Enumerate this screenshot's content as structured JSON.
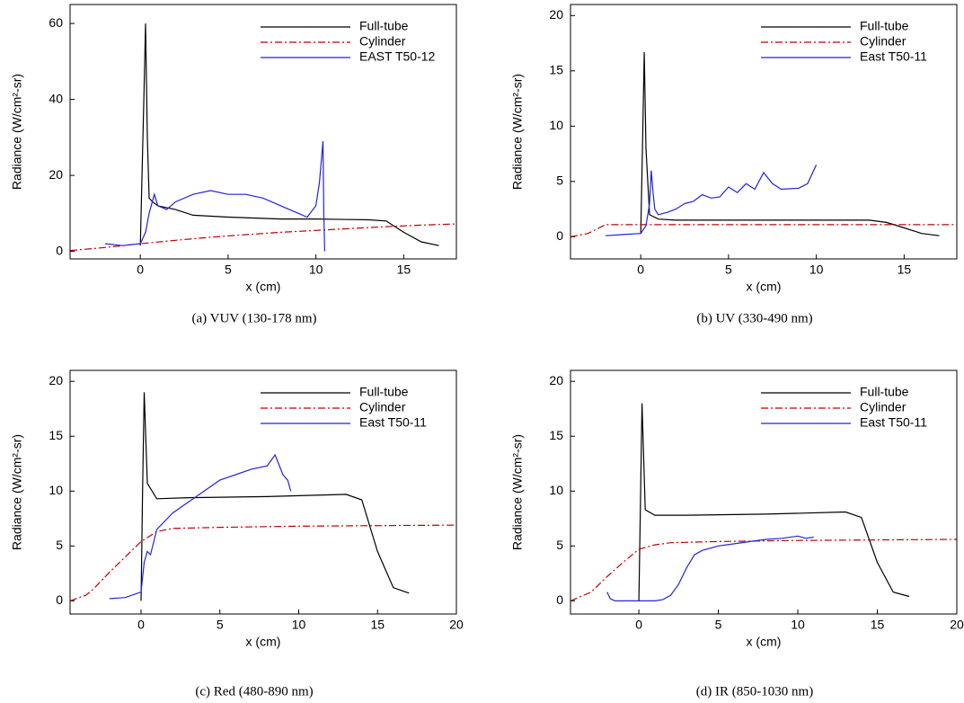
{
  "chart_data": [
    {
      "type": "line",
      "caption": "(a)  VUV (130-178 nm)",
      "xlabel": "x (cm)",
      "ylabel": "Radiance (W/cm²-sr)",
      "xlim": [
        -4,
        18
      ],
      "ylim": [
        -2,
        65
      ],
      "xticks": [
        0,
        5,
        10,
        15
      ],
      "yticks": [
        0,
        20,
        40,
        60
      ],
      "legend": "upper right",
      "series": [
        {
          "name": "Full-tube",
          "color": "#000000",
          "dash": "solid",
          "x": [
            0,
            0.2,
            0.3,
            0.4,
            0.5,
            0.7,
            1,
            2,
            3,
            5,
            8,
            10,
            13,
            14,
            15,
            16,
            17
          ],
          "values": [
            1.5,
            40,
            60,
            30,
            14,
            13,
            12,
            11,
            9.5,
            9,
            8.5,
            8.5,
            8.3,
            8,
            5,
            2.5,
            1.5
          ]
        },
        {
          "name": "Cylinder",
          "color": "#c00000",
          "dash": "dashdot",
          "x": [
            -4,
            -2,
            0,
            2,
            4,
            6,
            8,
            10,
            12,
            14,
            16,
            18
          ],
          "values": [
            0.2,
            1,
            2,
            2.9,
            3.7,
            4.4,
            5,
            5.5,
            6,
            6.5,
            6.9,
            7.2
          ]
        },
        {
          "name": "EAST T50-12",
          "color": "#2323e0",
          "dash": "solid",
          "x": [
            -2,
            -1,
            0,
            0.3,
            0.5,
            0.8,
            1,
            1.5,
            2,
            3,
            4,
            5,
            6,
            7,
            8,
            9,
            9.5,
            10,
            10.2,
            10.4,
            10.45,
            10.5
          ],
          "values": [
            2,
            1.5,
            2,
            5,
            10,
            15,
            12,
            11,
            13,
            15,
            16,
            15,
            15,
            14,
            12,
            10,
            9,
            12,
            18,
            29,
            10,
            0
          ]
        }
      ]
    },
    {
      "type": "line",
      "caption": "(b)  UV (330-490 nm)",
      "xlabel": "x (cm)",
      "ylabel": "Radiance (W/cm²-sr)",
      "xlim": [
        -4,
        18
      ],
      "ylim": [
        -2,
        21
      ],
      "xticks": [
        0,
        5,
        10,
        15
      ],
      "yticks": [
        0,
        5,
        10,
        15,
        20
      ],
      "legend": "upper right",
      "series": [
        {
          "name": "Full-tube",
          "color": "#000000",
          "dash": "solid",
          "x": [
            0,
            0.1,
            0.2,
            0.3,
            0.5,
            1,
            2,
            5,
            10,
            13,
            14,
            15,
            16,
            17
          ],
          "values": [
            0.3,
            8,
            16.7,
            8,
            2,
            1.6,
            1.5,
            1.5,
            1.5,
            1.5,
            1.3,
            0.8,
            0.3,
            0.1
          ]
        },
        {
          "name": "Cylinder",
          "color": "#c00000",
          "dash": "dashdot",
          "x": [
            -4,
            -3,
            -2.5,
            -2,
            0,
            5,
            10,
            15,
            18
          ],
          "values": [
            0,
            0.3,
            0.7,
            1.1,
            1.1,
            1.1,
            1.1,
            1.1,
            1.1
          ]
        },
        {
          "name": "East T50-11",
          "color": "#2323e0",
          "dash": "solid",
          "x": [
            -2,
            -1,
            0,
            0.3,
            0.5,
            0.6,
            0.7,
            0.8,
            1,
            1.5,
            2,
            2.5,
            3,
            3.5,
            4,
            4.5,
            5,
            5.5,
            6,
            6.5,
            7,
            7.5,
            8,
            9,
            9.5,
            10
          ],
          "values": [
            0.1,
            0.2,
            0.3,
            1,
            3,
            6,
            4,
            2.5,
            2,
            2.2,
            2.5,
            3,
            3.2,
            3.8,
            3.5,
            3.6,
            4.5,
            4,
            4.8,
            4.3,
            5.8,
            4.8,
            4.3,
            4.4,
            4.8,
            6.5
          ]
        }
      ]
    },
    {
      "type": "line",
      "caption": "(c)  Red (480-890 nm)",
      "xlabel": "x (cm)",
      "ylabel": "Radiance (W/cm²-sr)",
      "xlim": [
        -4.5,
        20
      ],
      "ylim": [
        -1.2,
        21
      ],
      "xticks": [
        0,
        5,
        10,
        15,
        20
      ],
      "yticks": [
        0,
        5,
        10,
        15,
        20
      ],
      "legend": "upper right",
      "series": [
        {
          "name": "Full-tube",
          "color": "#000000",
          "dash": "solid",
          "x": [
            0,
            0.1,
            0.2,
            0.4,
            1,
            3,
            8,
            13,
            14,
            15,
            16,
            17
          ],
          "values": [
            0,
            10,
            19,
            10.7,
            9.3,
            9.4,
            9.5,
            9.7,
            9.2,
            4.5,
            1.2,
            0.7
          ]
        },
        {
          "name": "Cylinder",
          "color": "#c00000",
          "dash": "dashdot",
          "x": [
            -4.5,
            -3.5,
            -3,
            -2,
            -1,
            0,
            1,
            2,
            5,
            10,
            20
          ],
          "values": [
            0,
            0.5,
            1.1,
            2.6,
            4,
            5.4,
            6.3,
            6.6,
            6.7,
            6.8,
            6.9
          ]
        },
        {
          "name": "East T50-11",
          "color": "#2323e0",
          "dash": "solid",
          "x": [
            -2,
            -1,
            0,
            0.2,
            0.4,
            0.6,
            1,
            2,
            3,
            4,
            5,
            6,
            7,
            8,
            8.5,
            9,
            9.3,
            9.5
          ],
          "values": [
            0.2,
            0.3,
            0.8,
            3.5,
            4.5,
            4.2,
            6.5,
            8,
            9,
            10,
            11,
            11.5,
            12,
            12.3,
            13.3,
            11.5,
            11,
            10
          ]
        }
      ]
    },
    {
      "type": "line",
      "caption": "(d)  IR (850-1030 nm)",
      "xlabel": "x (cm)",
      "ylabel": "Radiance (W/cm²-sr)",
      "xlim": [
        -4.3,
        20
      ],
      "ylim": [
        -1.2,
        21
      ],
      "xticks": [
        0,
        5,
        10,
        15,
        20
      ],
      "yticks": [
        0,
        5,
        10,
        15,
        20
      ],
      "legend": "upper right",
      "series": [
        {
          "name": "Full-tube",
          "color": "#000000",
          "dash": "solid",
          "x": [
            0,
            0.1,
            0.2,
            0.4,
            1,
            3,
            8,
            13,
            14,
            15,
            16,
            17
          ],
          "values": [
            0,
            9,
            18,
            8.3,
            7.8,
            7.8,
            7.9,
            8.1,
            7.6,
            3.5,
            0.8,
            0.4
          ]
        },
        {
          "name": "Cylinder",
          "color": "#c00000",
          "dash": "dashdot",
          "x": [
            -4.3,
            -3,
            -2,
            -1,
            0,
            1,
            2,
            5,
            10,
            20
          ],
          "values": [
            0,
            0.8,
            2.2,
            3.5,
            4.7,
            5.1,
            5.3,
            5.4,
            5.5,
            5.6
          ]
        },
        {
          "name": "East T50-11",
          "color": "#2323e0",
          "dash": "solid",
          "x": [
            -2,
            -1.8,
            -1.5,
            -1,
            0,
            1,
            1.5,
            2,
            2.5,
            3,
            3.5,
            4,
            5,
            6,
            7,
            8,
            9,
            10,
            10.5,
            11
          ],
          "values": [
            0.8,
            0.2,
            0,
            0,
            0,
            0,
            0.1,
            0.5,
            1.5,
            3,
            4.2,
            4.6,
            5,
            5.2,
            5.4,
            5.6,
            5.7,
            5.9,
            5.7,
            5.8
          ]
        }
      ]
    }
  ]
}
